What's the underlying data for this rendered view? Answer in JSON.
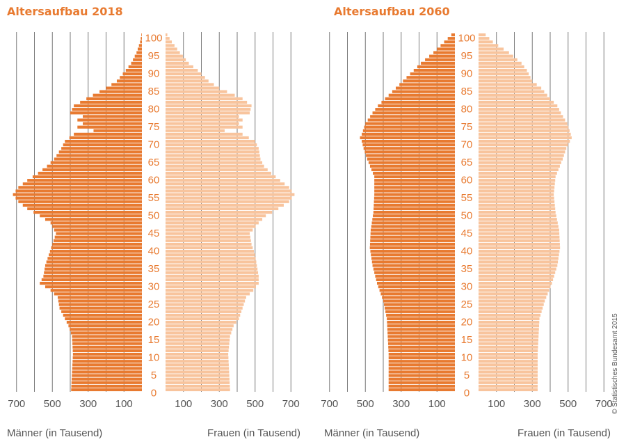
{
  "colors": {
    "male": "#E87A30",
    "female": "#F8C49D",
    "grid": "#7a7a7a",
    "title": "#E87A30",
    "label": "#555555"
  },
  "credit": "© Statistisches Bundesamt 2015",
  "chart_data": [
    {
      "type": "population-pyramid",
      "title": "Altersaufbau 2018",
      "xlabel_left": "Männer (in Tausend)",
      "xlabel_right": "Frauen (in Tausend)",
      "age_ticks": [
        "0",
        "5",
        "10",
        "15",
        "20",
        "25",
        "30",
        "35",
        "40",
        "45",
        "50",
        "55",
        "60",
        "65",
        "70",
        "75",
        "80",
        "85",
        "90",
        "95",
        "100"
      ],
      "xtick_labels_left": [
        "700",
        "500",
        "300",
        "100"
      ],
      "xtick_labels_right": [
        "100",
        "300",
        "500",
        "700"
      ],
      "xlim": [
        0,
        750
      ],
      "age_range": [
        0,
        100
      ],
      "anchors": {
        "male": [
          [
            0,
            395
          ],
          [
            10,
            385
          ],
          [
            15,
            390
          ],
          [
            18,
            410
          ],
          [
            20,
            430
          ],
          [
            23,
            460
          ],
          [
            26,
            470
          ],
          [
            28,
            510
          ],
          [
            30,
            570
          ],
          [
            32,
            550
          ],
          [
            35,
            540
          ],
          [
            38,
            520
          ],
          [
            41,
            500
          ],
          [
            44,
            480
          ],
          [
            47,
            510
          ],
          [
            49,
            570
          ],
          [
            51,
            640
          ],
          [
            53,
            690
          ],
          [
            55,
            720
          ],
          [
            57,
            690
          ],
          [
            59,
            640
          ],
          [
            61,
            580
          ],
          [
            63,
            530
          ],
          [
            65,
            490
          ],
          [
            68,
            450
          ],
          [
            70,
            430
          ],
          [
            72,
            380
          ],
          [
            73,
            270
          ],
          [
            74,
            360
          ],
          [
            75,
            330
          ],
          [
            76,
            360
          ],
          [
            77,
            330
          ],
          [
            78,
            400
          ],
          [
            80,
            380
          ],
          [
            82,
            310
          ],
          [
            85,
            200
          ],
          [
            87,
            140
          ],
          [
            90,
            90
          ],
          [
            92,
            60
          ],
          [
            95,
            30
          ],
          [
            98,
            10
          ],
          [
            100,
            3
          ]
        ],
        "female": [
          [
            0,
            360
          ],
          [
            10,
            350
          ],
          [
            15,
            360
          ],
          [
            18,
            380
          ],
          [
            20,
            410
          ],
          [
            23,
            430
          ],
          [
            26,
            450
          ],
          [
            28,
            490
          ],
          [
            30,
            520
          ],
          [
            32,
            520
          ],
          [
            35,
            510
          ],
          [
            38,
            500
          ],
          [
            41,
            480
          ],
          [
            44,
            470
          ],
          [
            47,
            520
          ],
          [
            49,
            560
          ],
          [
            51,
            630
          ],
          [
            53,
            690
          ],
          [
            55,
            720
          ],
          [
            57,
            690
          ],
          [
            59,
            640
          ],
          [
            61,
            590
          ],
          [
            63,
            550
          ],
          [
            65,
            530
          ],
          [
            68,
            520
          ],
          [
            70,
            500
          ],
          [
            72,
            430
          ],
          [
            73,
            330
          ],
          [
            74,
            430
          ],
          [
            75,
            410
          ],
          [
            76,
            430
          ],
          [
            77,
            410
          ],
          [
            78,
            470
          ],
          [
            80,
            480
          ],
          [
            82,
            430
          ],
          [
            85,
            300
          ],
          [
            87,
            240
          ],
          [
            90,
            180
          ],
          [
            92,
            130
          ],
          [
            95,
            80
          ],
          [
            98,
            35
          ],
          [
            100,
            10
          ]
        ]
      }
    },
    {
      "type": "population-pyramid",
      "title": "Altersaufbau 2060",
      "xlabel_left": "Männer (in Tausend)",
      "xlabel_right": "Frauen (in Tausend)",
      "age_ticks": [
        "0",
        "5",
        "10",
        "15",
        "20",
        "25",
        "30",
        "35",
        "40",
        "45",
        "50",
        "55",
        "60",
        "65",
        "70",
        "75",
        "80",
        "85",
        "90",
        "95",
        "100"
      ],
      "xtick_labels_left": [
        "700",
        "500",
        "300",
        "100"
      ],
      "xtick_labels_right": [
        "100",
        "300",
        "500",
        "700"
      ],
      "xlim": [
        0,
        750
      ],
      "age_range": [
        0,
        100
      ],
      "anchors": {
        "male": [
          [
            0,
            370
          ],
          [
            10,
            370
          ],
          [
            15,
            375
          ],
          [
            20,
            380
          ],
          [
            25,
            400
          ],
          [
            30,
            435
          ],
          [
            35,
            460
          ],
          [
            40,
            475
          ],
          [
            45,
            470
          ],
          [
            50,
            455
          ],
          [
            55,
            450
          ],
          [
            60,
            450
          ],
          [
            65,
            490
          ],
          [
            68,
            510
          ],
          [
            70,
            520
          ],
          [
            71,
            530
          ],
          [
            72,
            520
          ],
          [
            75,
            500
          ],
          [
            78,
            460
          ],
          [
            80,
            430
          ],
          [
            82,
            390
          ],
          [
            85,
            330
          ],
          [
            87,
            290
          ],
          [
            90,
            230
          ],
          [
            92,
            190
          ],
          [
            95,
            120
          ],
          [
            98,
            60
          ],
          [
            100,
            20
          ]
        ],
        "female": [
          [
            0,
            330
          ],
          [
            10,
            330
          ],
          [
            15,
            335
          ],
          [
            20,
            340
          ],
          [
            25,
            370
          ],
          [
            30,
            410
          ],
          [
            35,
            440
          ],
          [
            40,
            455
          ],
          [
            45,
            450
          ],
          [
            50,
            430
          ],
          [
            55,
            420
          ],
          [
            60,
            430
          ],
          [
            65,
            470
          ],
          [
            68,
            490
          ],
          [
            70,
            510
          ],
          [
            71,
            520
          ],
          [
            72,
            515
          ],
          [
            75,
            495
          ],
          [
            78,
            460
          ],
          [
            80,
            440
          ],
          [
            82,
            400
          ],
          [
            85,
            350
          ],
          [
            87,
            300
          ],
          [
            90,
            270
          ],
          [
            92,
            240
          ],
          [
            95,
            170
          ],
          [
            98,
            80
          ],
          [
            100,
            40
          ]
        ]
      }
    }
  ]
}
